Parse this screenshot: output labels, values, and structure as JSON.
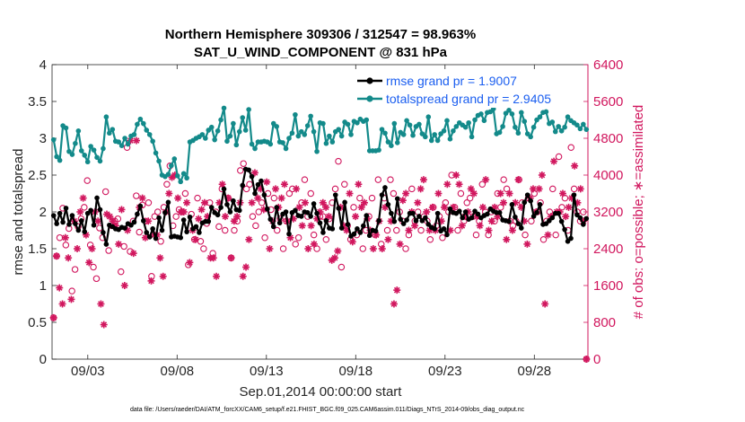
{
  "chart_data": {
    "type": "line",
    "title": "Northern Hemisphere 309306 / 312547 = 98.963%",
    "subtitle": "SAT_U_WIND_COMPONENT @ 831 hPa",
    "xlabel": "Sep.01,2014 00:00:00 start",
    "ylabel_left": "rmse and totalspread",
    "ylabel_right": "# of obs: o=possible; ∗=assimilated",
    "footer": "data file: /Users/raeder/DAI/ATM_forcXX/CAM6_setup/f.e21.FHIST_BGC.f09_025.CAM6assim.011/Diags_NTrS_2014-09/obs_diag_output.nc",
    "xlim": [
      1.0,
      31.0
    ],
    "x_tick_values": [
      3,
      8,
      13,
      18,
      23,
      28
    ],
    "x_tick_labels": [
      "09/03",
      "09/08",
      "09/13",
      "09/18",
      "09/23",
      "09/28"
    ],
    "ylim_left": [
      0,
      4
    ],
    "y_left_ticks": [
      0,
      0.5,
      1,
      1.5,
      2,
      2.5,
      3,
      3.5,
      4
    ],
    "y_left_tick_labels": [
      "0",
      "0.5",
      "1",
      "1.5",
      "2",
      "2.5",
      "3",
      "3.5",
      "4"
    ],
    "ylim_right": [
      0,
      6400
    ],
    "y_right_ticks": [
      0,
      800,
      1600,
      2400,
      3200,
      4000,
      4800,
      5600,
      6400
    ],
    "y_right_tick_labels": [
      "0",
      "800",
      "1600",
      "2400",
      "3200",
      "4000",
      "4800",
      "5600",
      "6400"
    ],
    "grid": false,
    "legend_position": "top-right",
    "colors": {
      "rmse": "#000000",
      "spread": "#138a8a",
      "obs": "#d1175e",
      "legend_text": "#1a5ef0"
    },
    "series": [
      {
        "name": "rmse grand pr = 1.9007",
        "axis": "left",
        "values": [
          1.95,
          1.84,
          1.98,
          1.86,
          2.05,
          1.83,
          1.95,
          1.84,
          1.75,
          1.88,
          1.73,
          1.98,
          2.02,
          1.82,
          2.19,
          2.03,
          1.72,
          1.56,
          1.82,
          1.8,
          1.77,
          1.76,
          1.79,
          1.78,
          1.84,
          1.82,
          1.86,
          1.97,
          2.08,
          1.88,
          1.72,
          1.66,
          1.77,
          1.64,
          1.92,
          1.75,
          1.99,
          2.13,
          1.66,
          1.67,
          1.66,
          1.65,
          1.89,
          1.73,
          1.93,
          1.77,
          1.8,
          1.72,
          1.85,
          1.87,
          1.87,
          2.06,
          1.99,
          1.96,
          2.06,
          2.31,
          2.1,
          2.0,
          2.15,
          2.03,
          2.02,
          2.36,
          2.58,
          2.57,
          2.48,
          2.25,
          2.37,
          2.42,
          2.23,
          2.04,
          1.9,
          1.8,
          2.06,
          1.85,
          1.97,
          2.0,
          1.7,
          1.99,
          2.02,
          1.95,
          1.94,
          2.0,
          1.99,
          1.94,
          2.11,
          1.98,
          1.85,
          1.72,
          1.88,
          1.78,
          1.77,
          2.23,
          2.05,
          1.78,
          2.13,
          1.83,
          1.67,
          1.7,
          1.77,
          1.72,
          1.81,
          1.95,
          1.68,
          1.75,
          1.74,
          1.88,
          2.23,
          2.33,
          2.1,
          1.98,
          1.87,
          2.18,
          1.9,
          1.84,
          1.89,
          1.98,
          1.98,
          1.88,
          1.94,
          1.88,
          1.92,
          1.83,
          1.79,
          1.77,
          1.98,
          1.74,
          1.77,
          1.69,
          2.04,
          1.99,
          1.98,
          2.01,
          1.92,
          2.0,
          1.9,
          1.92,
          2.01,
          1.97,
          1.92,
          1.95,
          1.97,
          2.04,
          2.01,
          1.99,
          1.99,
          1.89,
          1.88,
          1.87,
          2.1,
          1.93,
          1.84,
          1.78,
          2.13,
          2.23,
          2.15,
          1.94,
          1.99,
          2.1,
          1.83,
          1.84,
          1.88,
          1.92,
          1.98,
          1.98,
          1.87,
          1.76,
          1.6,
          1.64,
          2.23,
          1.96,
          1.92,
          1.83,
          1.91
        ]
      },
      {
        "name": "totalspread grand pr = 2.9405",
        "axis": "left",
        "values": [
          2.98,
          2.75,
          2.7,
          3.17,
          3.14,
          2.82,
          2.78,
          2.93,
          3.1,
          2.83,
          2.77,
          2.68,
          2.89,
          2.84,
          2.74,
          2.69,
          2.86,
          3.29,
          3.07,
          3.12,
          2.96,
          2.95,
          2.9,
          3.0,
          2.92,
          3.03,
          3.05,
          3.19,
          3.26,
          3.2,
          3.11,
          3.05,
          2.96,
          2.8,
          2.69,
          2.5,
          2.48,
          2.51,
          2.63,
          2.72,
          2.49,
          2.41,
          2.52,
          2.46,
          2.95,
          2.97,
          3.0,
          3.02,
          3.05,
          3.0,
          3.11,
          3.15,
          2.98,
          3.1,
          3.25,
          3.41,
          2.96,
          3.03,
          3.2,
          2.91,
          3.09,
          3.28,
          3.11,
          3.39,
          2.92,
          2.86,
          2.95,
          2.95,
          2.96,
          2.95,
          2.92,
          3.2,
          3.16,
          2.95,
          2.94,
          2.86,
          3.0,
          3.07,
          3.32,
          3.03,
          3.09,
          3.05,
          3.17,
          3.3,
          3.09,
          2.82,
          3.21,
          3.2,
          2.93,
          3.03,
          2.95,
          3.09,
          3.12,
          3.03,
          3.22,
          3.19,
          3.05,
          3.23,
          3.21,
          3.26,
          3.23,
          3.25,
          2.83,
          2.83,
          2.83,
          2.84,
          3.12,
          3.07,
          2.95,
          2.9,
          3.2,
          2.94,
          3.08,
          3.05,
          3.24,
          3.18,
          3.04,
          3.16,
          3.19,
          3.06,
          3.02,
          3.29,
          2.97,
          3.05,
          2.97,
          3.06,
          3.1,
          3.24,
          2.99,
          3.1,
          3.16,
          3.21,
          3.18,
          3.15,
          3.21,
          3.02,
          3.25,
          3.31,
          3.33,
          3.24,
          3.35,
          3.36,
          3.4,
          3.06,
          3.08,
          3.16,
          3.34,
          3.38,
          3.33,
          3.15,
          3.07,
          3.35,
          3.23,
          3.06,
          3.02,
          3.15,
          3.25,
          3.29,
          3.35,
          3.36,
          3.2,
          3.22,
          3.09,
          3.16,
          3.1,
          3.15,
          3.29,
          3.24,
          3.21,
          3.18,
          3.13,
          3.19,
          3.12
        ]
      },
      {
        "name": "possible",
        "axis": "right",
        "marker": "o",
        "values": [
          900,
          2240,
          2640,
          3280,
          2480,
          2840,
          1480,
          1950,
          2880,
          3050,
          3300,
          3880,
          2480,
          2000,
          1750,
          2850,
          2640,
          3640,
          2360,
          2900,
          3000,
          3050,
          1900,
          2450,
          4600,
          2340,
          3000,
          3550,
          2760,
          3350,
          3000,
          3400,
          1800,
          3100,
          3200,
          2560,
          3300,
          3800,
          4200,
          2900,
          3100,
          3250,
          3200,
          3600,
          2050,
          3150,
          2600,
          3500,
          2560,
          2400,
          2950,
          3400,
          2300,
          3200,
          2880,
          3700,
          2800,
          3500,
          2200,
          2800,
          3000,
          4100,
          4250,
          3700,
          3800,
          3100,
          2900,
          3200,
          3400,
          2640,
          3600,
          3250,
          3500,
          2800,
          3050,
          2400,
          3000,
          3600,
          3700,
          2500,
          2640,
          3400,
          3900,
          3100,
          3600,
          2700,
          2400,
          3100,
          3100,
          2600,
          3050,
          3400,
          3700,
          4300,
          2000,
          3800,
          2900,
          2600,
          3300,
          2700,
          3500,
          2400,
          2800,
          3100,
          3500,
          2700,
          3900,
          2500,
          3500,
          2800,
          3900,
          3600,
          2800,
          3200,
          3000,
          2400,
          2700,
          3700,
          3000,
          3200,
          2800,
          3100,
          3000,
          2600,
          3300,
          2900,
          3100,
          2640,
          3400,
          3200,
          4000,
          3300,
          2800,
          3600,
          3000,
          3400,
          3500,
          3100,
          2700,
          3000,
          3800,
          3200,
          2700,
          3200,
          3000,
          3600,
          3300,
          3900,
          3700,
          3000,
          2900,
          3000,
          3900,
          3400,
          2700,
          3500,
          3000,
          3600,
          3200,
          3400,
          2600,
          3000,
          3200,
          3700,
          2700,
          4400,
          3300,
          3500,
          2800,
          4600,
          3700,
          3200,
          3000,
          3200,
          0
        ]
      },
      {
        "name": "assimilated",
        "axis": "right",
        "marker": "*",
        "values": [
          900,
          2240,
          1550,
          1200,
          2640,
          2200,
          1300,
          3000,
          2400,
          3200,
          3500,
          2700,
          2100,
          2400,
          3200,
          3000,
          1200,
          750,
          3150,
          3100,
          3000,
          2900,
          2500,
          3250,
          1600,
          2800,
          4750,
          2300,
          4750,
          3300,
          3500,
          2640,
          3000,
          1700,
          2700,
          2700,
          2200,
          1800,
          3200,
          3600,
          3950,
          4000,
          3500,
          3200,
          3200,
          3400,
          2100,
          2800,
          2600,
          3050,
          3250,
          3400,
          3100,
          2200,
          2200,
          1800,
          3400,
          3800,
          3100,
          3500,
          2200,
          3000,
          3100,
          3400,
          1800,
          2000,
          2600,
          3400,
          4050,
          3500,
          3700,
          3250,
          3850,
          2400,
          3000,
          3700,
          3300,
          3500,
          3800,
          3000,
          2640,
          3050,
          3700,
          3300,
          2900,
          3400,
          2400,
          2900,
          2500,
          3050,
          3200,
          3400,
          3300,
          3100,
          2150,
          2200,
          2350,
          3300,
          2900,
          2800,
          3600,
          2550,
          3100,
          3800,
          3300,
          3400,
          3050,
          2800,
          2400,
          2700,
          3000,
          2400,
          3300,
          2600,
          3000,
          1200,
          1500,
          2500,
          3450,
          3600,
          2800,
          3200,
          2900,
          3400,
          3700,
          3900,
          3200,
          2800,
          3300,
          2800,
          3600,
          3000,
          3300,
          3800,
          2800,
          3300,
          4000,
          3800,
          2900,
          3100,
          3200,
          3700,
          3600,
          3100,
          2900,
          3300,
          3900,
          2800,
          3000,
          3300,
          3100,
          3600,
          3400,
          2600,
          3600,
          2800,
          3400,
          3900,
          3300,
          3000,
          2500,
          3500,
          3700,
          3200,
          3700,
          4000,
          1200,
          2700,
          3100,
          4300,
          3200,
          3200,
          3600,
          3100,
          3300,
          3500,
          4200,
          3400,
          3700,
          3000,
          0
        ]
      }
    ]
  }
}
